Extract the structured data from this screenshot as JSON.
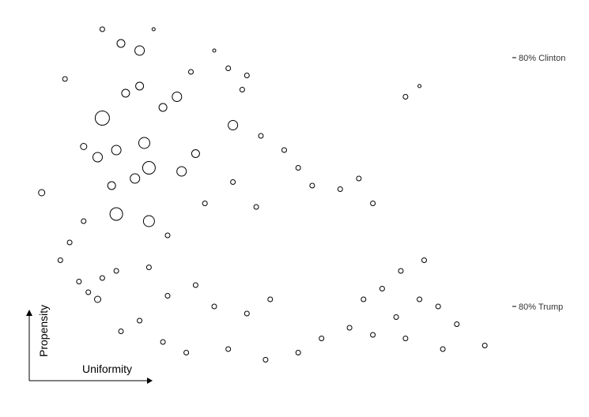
{
  "chart_data": {
    "type": "scatter",
    "title": "",
    "xlabel": "Uniformity",
    "ylabel": "Propensity",
    "xlim": [
      0,
      1
    ],
    "ylim": [
      0,
      1
    ],
    "grid": false,
    "legend": "none",
    "reference_lines": [
      {
        "label": "80% Clinton",
        "y": 0.9
      },
      {
        "label": "80% Trump",
        "y": 0.2
      }
    ],
    "marker": {
      "shape": "open-circle",
      "size_encodes": "unlabeled magnitude"
    },
    "points": [
      {
        "x": 0.03,
        "y": 0.52,
        "s": 4
      },
      {
        "x": 0.08,
        "y": 0.84,
        "s": 3
      },
      {
        "x": 0.16,
        "y": 0.98,
        "s": 3
      },
      {
        "x": 0.2,
        "y": 0.94,
        "s": 5
      },
      {
        "x": 0.24,
        "y": 0.92,
        "s": 6
      },
      {
        "x": 0.27,
        "y": 0.98,
        "s": 2
      },
      {
        "x": 0.16,
        "y": 0.73,
        "s": 9
      },
      {
        "x": 0.21,
        "y": 0.8,
        "s": 5
      },
      {
        "x": 0.24,
        "y": 0.82,
        "s": 5
      },
      {
        "x": 0.29,
        "y": 0.76,
        "s": 5
      },
      {
        "x": 0.32,
        "y": 0.79,
        "s": 6
      },
      {
        "x": 0.19,
        "y": 0.64,
        "s": 6
      },
      {
        "x": 0.25,
        "y": 0.66,
        "s": 7
      },
      {
        "x": 0.26,
        "y": 0.59,
        "s": 8
      },
      {
        "x": 0.23,
        "y": 0.56,
        "s": 6
      },
      {
        "x": 0.15,
        "y": 0.62,
        "s": 6
      },
      {
        "x": 0.18,
        "y": 0.54,
        "s": 5
      },
      {
        "x": 0.26,
        "y": 0.44,
        "s": 7
      },
      {
        "x": 0.19,
        "y": 0.46,
        "s": 8
      },
      {
        "x": 0.12,
        "y": 0.65,
        "s": 4
      },
      {
        "x": 0.44,
        "y": 0.71,
        "s": 6
      },
      {
        "x": 0.36,
        "y": 0.63,
        "s": 5
      },
      {
        "x": 0.33,
        "y": 0.58,
        "s": 6
      },
      {
        "x": 0.35,
        "y": 0.86,
        "s": 3
      },
      {
        "x": 0.4,
        "y": 0.92,
        "s": 2
      },
      {
        "x": 0.43,
        "y": 0.87,
        "s": 3
      },
      {
        "x": 0.47,
        "y": 0.85,
        "s": 3
      },
      {
        "x": 0.46,
        "y": 0.81,
        "s": 3
      },
      {
        "x": 0.5,
        "y": 0.68,
        "s": 3
      },
      {
        "x": 0.55,
        "y": 0.64,
        "s": 3
      },
      {
        "x": 0.58,
        "y": 0.59,
        "s": 3
      },
      {
        "x": 0.61,
        "y": 0.54,
        "s": 3
      },
      {
        "x": 0.67,
        "y": 0.53,
        "s": 3
      },
      {
        "x": 0.71,
        "y": 0.56,
        "s": 3
      },
      {
        "x": 0.74,
        "y": 0.49,
        "s": 3
      },
      {
        "x": 0.84,
        "y": 0.82,
        "s": 2
      },
      {
        "x": 0.81,
        "y": 0.79,
        "s": 3
      },
      {
        "x": 0.12,
        "y": 0.44,
        "s": 3
      },
      {
        "x": 0.09,
        "y": 0.38,
        "s": 3
      },
      {
        "x": 0.11,
        "y": 0.27,
        "s": 3
      },
      {
        "x": 0.07,
        "y": 0.33,
        "s": 3
      },
      {
        "x": 0.16,
        "y": 0.28,
        "s": 3
      },
      {
        "x": 0.15,
        "y": 0.22,
        "s": 4
      },
      {
        "x": 0.13,
        "y": 0.24,
        "s": 3
      },
      {
        "x": 0.19,
        "y": 0.3,
        "s": 3
      },
      {
        "x": 0.2,
        "y": 0.13,
        "s": 3
      },
      {
        "x": 0.24,
        "y": 0.16,
        "s": 3
      },
      {
        "x": 0.29,
        "y": 0.1,
        "s": 3
      },
      {
        "x": 0.34,
        "y": 0.07,
        "s": 3
      },
      {
        "x": 0.43,
        "y": 0.08,
        "s": 3
      },
      {
        "x": 0.51,
        "y": 0.05,
        "s": 3
      },
      {
        "x": 0.58,
        "y": 0.07,
        "s": 3
      },
      {
        "x": 0.63,
        "y": 0.11,
        "s": 3
      },
      {
        "x": 0.69,
        "y": 0.14,
        "s": 3
      },
      {
        "x": 0.74,
        "y": 0.12,
        "s": 3
      },
      {
        "x": 0.79,
        "y": 0.17,
        "s": 3
      },
      {
        "x": 0.84,
        "y": 0.22,
        "s": 3
      },
      {
        "x": 0.88,
        "y": 0.2,
        "s": 3
      },
      {
        "x": 0.92,
        "y": 0.15,
        "s": 3
      },
      {
        "x": 0.98,
        "y": 0.09,
        "s": 3
      },
      {
        "x": 0.89,
        "y": 0.08,
        "s": 3
      },
      {
        "x": 0.81,
        "y": 0.11,
        "s": 3
      },
      {
        "x": 0.85,
        "y": 0.33,
        "s": 3
      },
      {
        "x": 0.8,
        "y": 0.3,
        "s": 3
      },
      {
        "x": 0.76,
        "y": 0.25,
        "s": 3
      },
      {
        "x": 0.72,
        "y": 0.22,
        "s": 3
      },
      {
        "x": 0.52,
        "y": 0.22,
        "s": 3
      },
      {
        "x": 0.47,
        "y": 0.18,
        "s": 3
      },
      {
        "x": 0.4,
        "y": 0.2,
        "s": 3
      },
      {
        "x": 0.36,
        "y": 0.26,
        "s": 3
      },
      {
        "x": 0.3,
        "y": 0.23,
        "s": 3
      },
      {
        "x": 0.26,
        "y": 0.31,
        "s": 3
      },
      {
        "x": 0.3,
        "y": 0.4,
        "s": 3
      },
      {
        "x": 0.38,
        "y": 0.49,
        "s": 3
      },
      {
        "x": 0.44,
        "y": 0.55,
        "s": 3
      },
      {
        "x": 0.49,
        "y": 0.48,
        "s": 3
      }
    ]
  }
}
